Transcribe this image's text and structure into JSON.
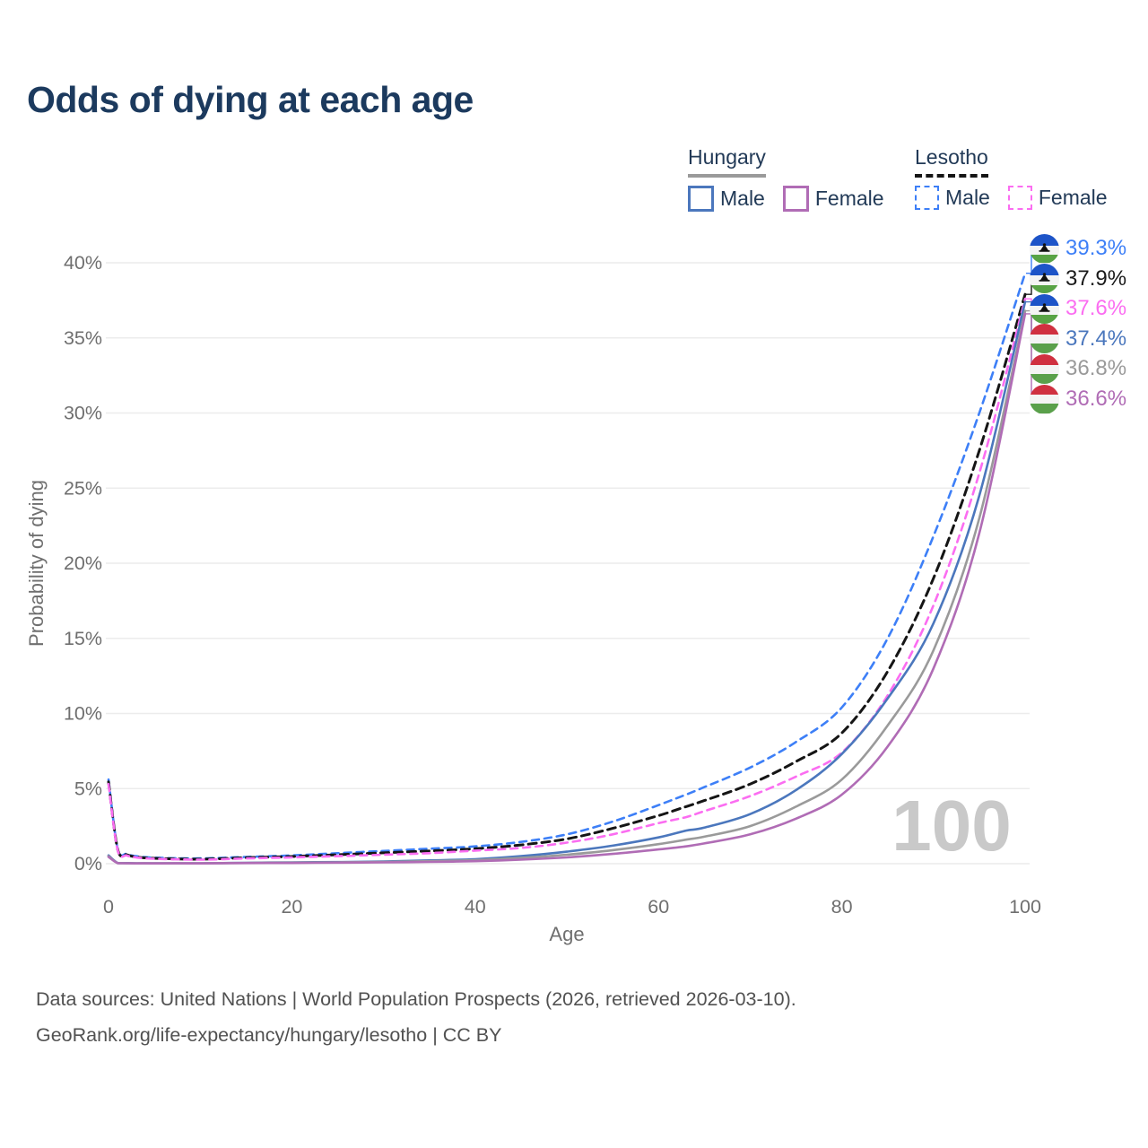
{
  "title": "Odds of dying at each age",
  "legend": {
    "hungary": {
      "title": "Hungary",
      "male": "Male",
      "female": "Female"
    },
    "lesotho": {
      "title": "Lesotho",
      "male": "Male",
      "female": "Female"
    }
  },
  "watermark": "100",
  "footer": {
    "line1": "Data sources: United Nations | World Population Prospects (2026, retrieved 2026-03-10).",
    "line2": "GeoRank.org/life-expectancy/hungary/lesotho | CC BY"
  },
  "colors": {
    "title_text": "#1c3a5e",
    "legend_text": "#223a57",
    "axis_text": "#6f6f6f",
    "gridline": "#ececec",
    "watermark": "#c9c9c9",
    "footer_text": "#515151"
  },
  "flags": {
    "lesotho": {
      "bands": [
        "#1d54c8",
        "#f4f4f4",
        "#58a345"
      ],
      "proportions": [
        40,
        32,
        28
      ],
      "hat": "#111111"
    },
    "hungary": {
      "bands": [
        "#d03040",
        "#f4f4f4",
        "#5aa04b"
      ],
      "proportions": [
        36,
        30,
        34
      ],
      "hat": null
    }
  },
  "chart_data": {
    "type": "line",
    "title": "Odds of dying at each age",
    "xlabel": "Age",
    "ylabel": "Probability of dying",
    "xlim": [
      0,
      100
    ],
    "ylim": [
      0,
      40
    ],
    "x_ticks": [
      0,
      20,
      40,
      60,
      80,
      100
    ],
    "y_ticks": [
      {
        "v": 0,
        "label": "0%"
      },
      {
        "v": 5,
        "label": "5%"
      },
      {
        "v": 10,
        "label": "10%"
      },
      {
        "v": 15,
        "label": "15%"
      },
      {
        "v": 20,
        "label": "20%"
      },
      {
        "v": 25,
        "label": "25%"
      },
      {
        "v": 30,
        "label": "30%"
      },
      {
        "v": 35,
        "label": "35%"
      },
      {
        "v": 40,
        "label": "40%"
      }
    ],
    "grid": "horizontal",
    "legend_position": "top-right",
    "ages": [
      0,
      1,
      2,
      3,
      5,
      10,
      15,
      20,
      25,
      30,
      35,
      40,
      45,
      50,
      55,
      60,
      63,
      65,
      70,
      75,
      80,
      85,
      90,
      95,
      100
    ],
    "series": [
      {
        "key": "lesotho_male",
        "name": "Lesotho Male",
        "country": "lesotho",
        "style": "dashed",
        "color": "#3d7ff7",
        "width": 2.6,
        "values": [
          5.6,
          1.0,
          0.65,
          0.5,
          0.4,
          0.35,
          0.45,
          0.55,
          0.7,
          0.85,
          1.0,
          1.15,
          1.45,
          1.95,
          2.8,
          3.9,
          4.6,
          5.1,
          6.4,
          8.1,
          10.4,
          15.0,
          21.8,
          30.0,
          39.3
        ]
      },
      {
        "key": "lesotho_both",
        "name": "Lesotho (both sexes)",
        "country": "lesotho",
        "style": "dashed",
        "color": "#151515",
        "width": 3,
        "values": [
          5.45,
          0.95,
          0.6,
          0.45,
          0.36,
          0.3,
          0.4,
          0.48,
          0.6,
          0.72,
          0.85,
          1.0,
          1.25,
          1.65,
          2.35,
          3.2,
          3.8,
          4.2,
          5.3,
          6.8,
          8.7,
          12.8,
          19.0,
          27.5,
          37.9
        ]
      },
      {
        "key": "lesotho_female",
        "name": "Lesotho Female",
        "country": "lesotho",
        "style": "dashed",
        "color": "#fb6df1",
        "width": 2.6,
        "values": [
          5.3,
          0.9,
          0.55,
          0.42,
          0.33,
          0.27,
          0.35,
          0.42,
          0.5,
          0.6,
          0.7,
          0.87,
          1.05,
          1.4,
          1.95,
          2.7,
          3.1,
          3.5,
          4.5,
          5.8,
          7.4,
          11.2,
          17.2,
          26.0,
          37.6
        ]
      },
      {
        "key": "hungary_male",
        "name": "Hungary Male",
        "country": "hungary",
        "style": "solid",
        "color": "#4b77bd",
        "width": 2.6,
        "values": [
          0.55,
          0.05,
          0.04,
          0.03,
          0.03,
          0.03,
          0.06,
          0.09,
          0.11,
          0.15,
          0.22,
          0.3,
          0.5,
          0.8,
          1.2,
          1.75,
          2.2,
          2.4,
          3.3,
          4.9,
          7.3,
          11.0,
          16.0,
          24.5,
          37.4
        ]
      },
      {
        "key": "hungary_both",
        "name": "Hungary (both sexes)",
        "country": "hungary",
        "style": "solid",
        "color": "#9a9a9a",
        "width": 2.6,
        "values": [
          0.5,
          0.04,
          0.03,
          0.025,
          0.025,
          0.025,
          0.05,
          0.07,
          0.09,
          0.12,
          0.17,
          0.24,
          0.38,
          0.6,
          0.9,
          1.3,
          1.6,
          1.8,
          2.5,
          3.8,
          5.6,
          9.2,
          14.2,
          23.0,
          36.8
        ]
      },
      {
        "key": "hungary_female",
        "name": "Hungary Female",
        "country": "hungary",
        "style": "solid",
        "color": "#b06cb5",
        "width": 2.6,
        "values": [
          0.45,
          0.035,
          0.025,
          0.02,
          0.02,
          0.02,
          0.04,
          0.05,
          0.07,
          0.09,
          0.12,
          0.17,
          0.27,
          0.42,
          0.65,
          0.95,
          1.15,
          1.35,
          1.95,
          3.0,
          4.6,
          7.8,
          13.0,
          22.0,
          36.6
        ]
      }
    ],
    "end_labels": [
      {
        "text": "39.3%",
        "value": 39.3,
        "color": "#3d7ff7",
        "flag": "lesotho",
        "series": "lesotho_male"
      },
      {
        "text": "37.9%",
        "value": 37.9,
        "color": "#1a1a1a",
        "flag": "lesotho",
        "series": "lesotho_both"
      },
      {
        "text": "37.6%",
        "value": 37.6,
        "color": "#fb6df1",
        "flag": "lesotho",
        "series": "lesotho_female"
      },
      {
        "text": "37.4%",
        "value": 37.4,
        "color": "#4b77bd",
        "flag": "hungary",
        "series": "hungary_male"
      },
      {
        "text": "36.8%",
        "value": 36.8,
        "color": "#9a9a9a",
        "flag": "hungary",
        "series": "hungary_both"
      },
      {
        "text": "36.6%",
        "value": 36.6,
        "color": "#b06cb5",
        "flag": "hungary",
        "series": "hungary_female"
      }
    ]
  }
}
